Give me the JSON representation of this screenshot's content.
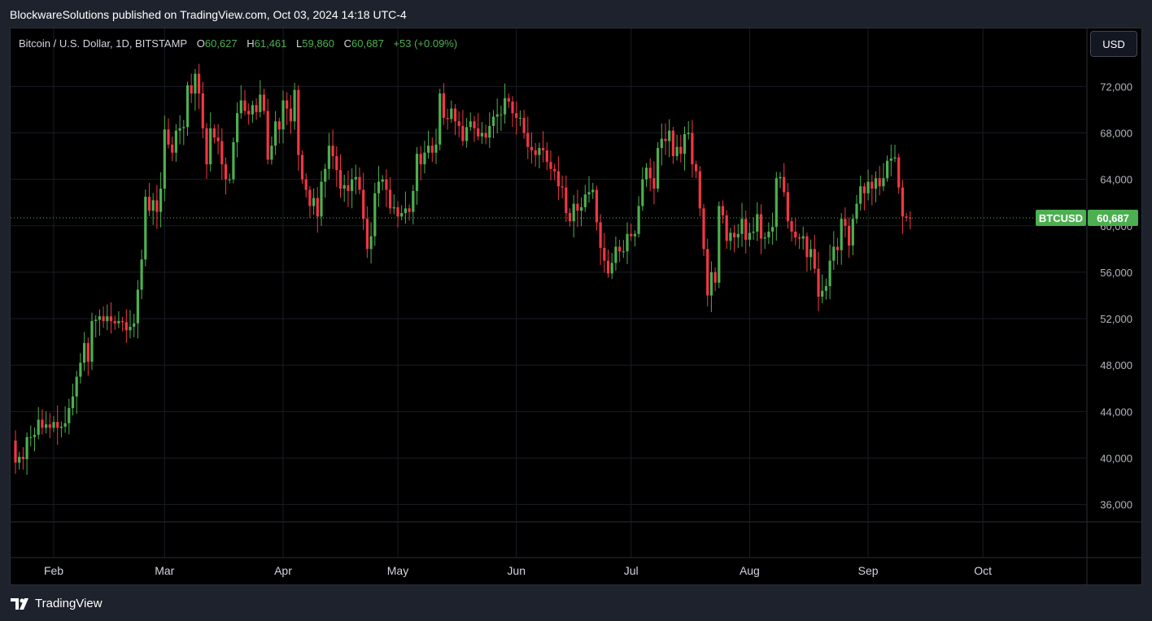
{
  "header": {
    "publisher_line": "BlockwareSolutions published on TradingView.com, Oct 03, 2024 14:18 UTC-4"
  },
  "legend": {
    "symbol": "Bitcoin / U.S. Dollar, 1D, BITSTAMP",
    "open_label": "O",
    "open": "60,627",
    "high_label": "H",
    "high": "61,461",
    "low_label": "L",
    "low": "59,860",
    "close_label": "C",
    "close": "60,687",
    "change": "+53 (+0.09%)"
  },
  "toolbar": {
    "currency_label": "USD"
  },
  "footer": {
    "brand": "TradingView"
  },
  "colors": {
    "up": "#4caf50",
    "down": "#f23645",
    "background": "#000000",
    "frame": "#1e222d",
    "grid": "#1a1d25",
    "price_tag": "#4caf50"
  },
  "chart_data": {
    "type": "candlestick",
    "title": "",
    "ticker_label": "BTCUSD",
    "last_price": 60687,
    "last_price_label": "60,687",
    "ylim": [
      34500,
      77000
    ],
    "y_ticks": [
      36000,
      40000,
      44000,
      48000,
      52000,
      56000,
      60000,
      64000,
      68000,
      72000
    ],
    "y_tick_labels": [
      "36,000",
      "40,000",
      "44,000",
      "48,000",
      "52,000",
      "56,000",
      "60,000",
      "64,000",
      "68,000",
      "72,000"
    ],
    "x_months": [
      {
        "label": "Feb",
        "date": "2024-02-01"
      },
      {
        "label": "Mar",
        "date": "2024-03-01"
      },
      {
        "label": "Apr",
        "date": "2024-04-01"
      },
      {
        "label": "May",
        "date": "2024-05-01"
      },
      {
        "label": "Jun",
        "date": "2024-06-01"
      },
      {
        "label": "Jul",
        "date": "2024-07-01"
      },
      {
        "label": "Aug",
        "date": "2024-08-01"
      },
      {
        "label": "Sep",
        "date": "2024-09-01"
      },
      {
        "label": "Oct",
        "date": "2024-10-01"
      }
    ],
    "start_date": "2024-01-22",
    "closes": [
      39600,
      40100,
      39900,
      41800,
      41800,
      42000,
      43300,
      42600,
      42900,
      42600,
      43100,
      42600,
      42700,
      43000,
      44300,
      45300,
      47000,
      48200,
      49900,
      48300,
      51800,
      51900,
      52200,
      51800,
      52200,
      51800,
      51600,
      51800,
      51700,
      51000,
      51300,
      51600,
      54500,
      57100,
      62500,
      61300,
      62200,
      61200,
      63200,
      68300,
      67000,
      66300,
      68200,
      68400,
      68500,
      72100,
      71400,
      73100,
      71400,
      68400,
      65300,
      68400,
      67600,
      67300,
      65300,
      64000,
      64000,
      67200,
      69700,
      70800,
      69900,
      69600,
      70400,
      69800,
      71300,
      69900,
      65700,
      66900,
      69000,
      68300,
      70800,
      70100,
      69000,
      71700,
      66100,
      64000,
      63100,
      61700,
      62400,
      60800,
      63800,
      64900,
      66900,
      66000,
      64800,
      63200,
      63500,
      63000,
      64000,
      64200,
      63100,
      60600,
      58000,
      59100,
      62800,
      63800,
      64000,
      63100,
      61500,
      61600,
      60800,
      61100,
      61500,
      61200,
      63000,
      66200,
      65300,
      66300,
      66900,
      66300,
      67000,
      71400,
      69300,
      69200,
      70100,
      69000,
      68600,
      67300,
      68500,
      69000,
      68400,
      67700,
      68000,
      67600,
      68600,
      69400,
      69600,
      69600,
      71000,
      70700,
      69700,
      69300,
      69300,
      68000,
      66800,
      66500,
      66100,
      66700,
      66500,
      65500,
      64900,
      64700,
      63400,
      63300,
      61100,
      60400,
      61900,
      61300,
      61600,
      62700,
      62900,
      63100,
      60300,
      58100,
      57000,
      55900,
      56800,
      58200,
      57800,
      57800,
      59300,
      59100,
      59300,
      61700,
      64000,
      65000,
      64100,
      63200,
      66700,
      67500,
      67300,
      68200,
      66000,
      66800,
      66200,
      67900,
      68000,
      65300,
      64700,
      61500,
      58000,
      54000,
      56000,
      55100,
      61700,
      60900,
      58700,
      59400,
      59000,
      59300,
      60600,
      58800,
      59400,
      59500,
      61000,
      58900,
      59000,
      59500,
      59900,
      64100,
      64200,
      62900,
      60400,
      59500,
      59000,
      58900,
      59100,
      57300,
      58000,
      56300,
      53900,
      54400,
      54800,
      57000,
      58200,
      57900,
      60600,
      60000,
      58300,
      60600,
      61900,
      63400,
      62800,
      63800,
      63200,
      64100,
      63400,
      64100,
      65600,
      65800,
      65900,
      63300,
      60800,
      60700,
      60687
    ]
  }
}
